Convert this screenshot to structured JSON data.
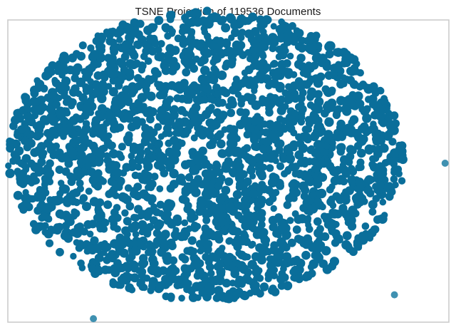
{
  "chart_data": {
    "type": "scatter",
    "title": "TSNE Projection of 119536 Documents",
    "xlabel": "",
    "ylabel": "",
    "xlim": [
      -100,
      100
    ],
    "ylim": [
      -100,
      100
    ],
    "grid": false,
    "axes_visible": false,
    "legend": "none",
    "point_color": "#0a6e9a",
    "document_count": 119536,
    "cloud": {
      "shape": "ellipse",
      "center": [
        -10,
        10
      ],
      "radius": [
        91,
        97
      ]
    },
    "outlier_points": [
      {
        "x": 98.3,
        "y": 5.2
      },
      {
        "x": 75.3,
        "y": -81.9
      },
      {
        "x": -61.2,
        "y": -97.7
      }
    ]
  }
}
